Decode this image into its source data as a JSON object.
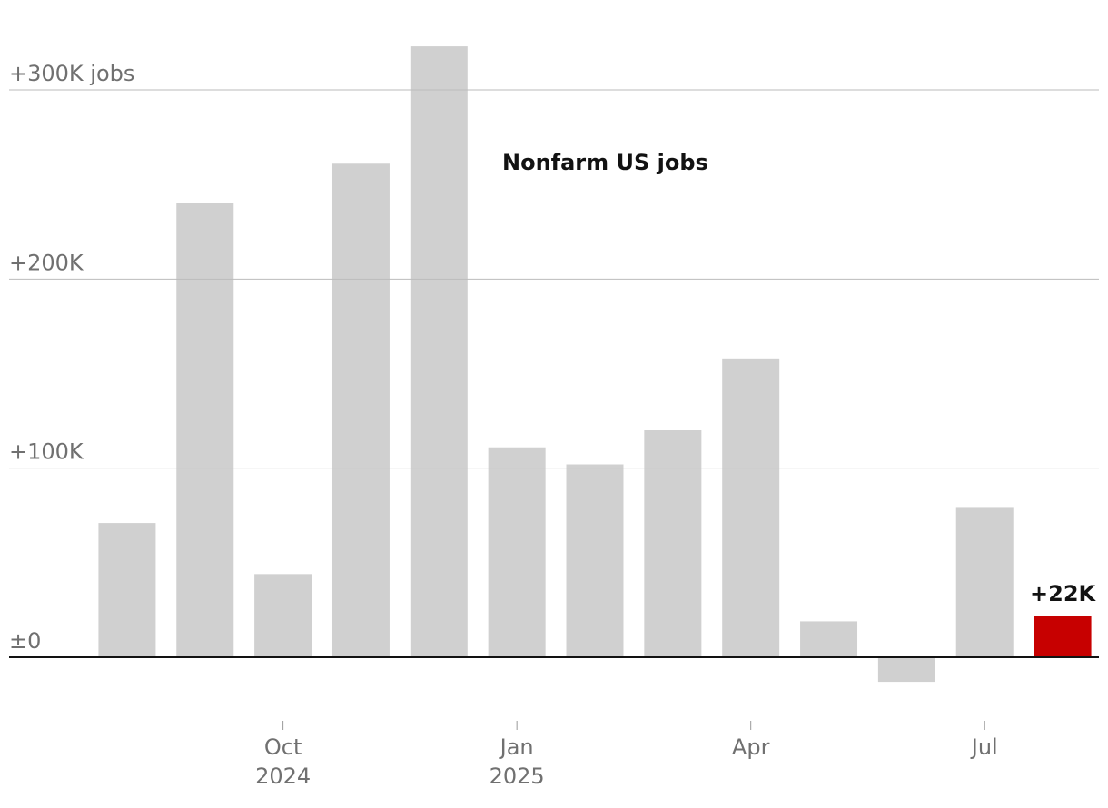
{
  "chart_data": {
    "type": "bar",
    "annotation": "Nonfarm US jobs",
    "categories": [
      null,
      null,
      "Oct",
      null,
      null,
      "Jan",
      null,
      null,
      "Apr",
      null,
      null,
      "Jul",
      null
    ],
    "category_years": [
      null,
      null,
      "2024",
      null,
      null,
      "2025",
      null,
      null,
      null,
      null,
      null,
      null,
      null
    ],
    "values": [
      71,
      240,
      44,
      261,
      323,
      111,
      102,
      120,
      158,
      19,
      -13,
      79,
      22
    ],
    "value_labels": [
      null,
      null,
      null,
      null,
      null,
      null,
      null,
      null,
      null,
      null,
      null,
      null,
      "+22K"
    ],
    "colors": [
      "#d0d0d0",
      "#d0d0d0",
      "#d0d0d0",
      "#d0d0d0",
      "#d0d0d0",
      "#d0d0d0",
      "#d0d0d0",
      "#d0d0d0",
      "#d0d0d0",
      "#d0d0d0",
      "#d0d0d0",
      "#d0d0d0",
      "#c70000"
    ],
    "ylim": [
      -30,
      330
    ],
    "yticks": [
      {
        "value": 0,
        "label": "±0"
      },
      {
        "value": 100,
        "label": "+100K"
      },
      {
        "value": 200,
        "label": "+200K"
      },
      {
        "value": 300,
        "label": "+300K jobs"
      }
    ],
    "grid": true
  }
}
